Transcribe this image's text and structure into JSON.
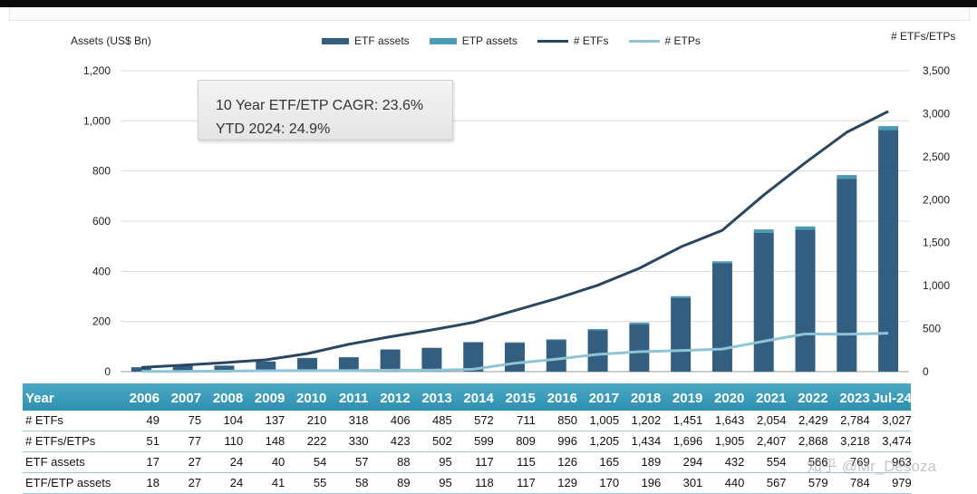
{
  "colors": {
    "etf_assets": "#345e80",
    "etp_assets": "#4a9bb4",
    "num_etfs": "#2b4660",
    "num_etps": "#8fc4d6",
    "grid": "#d9d9d9",
    "table_header": "#3a9cbd"
  },
  "chart_data": {
    "type": "bar",
    "left_axis_title": "Assets (US$ Bn)",
    "right_axis_title": "# ETFs/ETPs",
    "left_ticks": [
      "1,200",
      "1,000",
      "800",
      "600",
      "400",
      "200",
      "0"
    ],
    "right_ticks": [
      "3,500",
      "3,000",
      "2,500",
      "2,000",
      "1,500",
      "1,000",
      "500",
      "0"
    ],
    "ylim_left": [
      0,
      1200
    ],
    "ylim_right": [
      0,
      3500
    ],
    "grid": true,
    "legend_position": "top",
    "categories": [
      "2006",
      "2007",
      "2008",
      "2009",
      "2010",
      "2011",
      "2012",
      "2013",
      "2014",
      "2015",
      "2016",
      "2017",
      "2018",
      "2019",
      "2020",
      "2021",
      "2022",
      "2023",
      "Jul-24"
    ],
    "series": [
      {
        "name": "ETF assets",
        "type": "bar",
        "axis": "left",
        "values": [
          17,
          27,
          24,
          40,
          54,
          57,
          88,
          95,
          117,
          115,
          126,
          165,
          189,
          294,
          432,
          554,
          566,
          769,
          963
        ]
      },
      {
        "name": "ETP assets",
        "type": "bar-stack-total",
        "axis": "left",
        "values": [
          18,
          27,
          24,
          41,
          55,
          58,
          89,
          95,
          118,
          117,
          129,
          170,
          196,
          301,
          440,
          567,
          579,
          784,
          979
        ]
      },
      {
        "name": "# ETFs",
        "type": "line",
        "axis": "right",
        "values": [
          49,
          75,
          104,
          137,
          210,
          318,
          406,
          485,
          572,
          711,
          850,
          1005,
          1202,
          1451,
          1643,
          2054,
          2429,
          2784,
          3027
        ]
      },
      {
        "name": "# ETPs",
        "type": "line",
        "axis": "right",
        "values": [
          2,
          2,
          6,
          11,
          12,
          12,
          17,
          17,
          27,
          98,
          146,
          200,
          232,
          245,
          262,
          353,
          439,
          434,
          447
        ]
      }
    ],
    "annotation": [
      "10 Year ETF/ETP CAGR: 23.6%",
      "YTD 2024: 24.9%"
    ]
  },
  "table": {
    "header_label": "Year",
    "columns": [
      "2006",
      "2007",
      "2008",
      "2009",
      "2010",
      "2011",
      "2012",
      "2013",
      "2014",
      "2015",
      "2016",
      "2017",
      "2018",
      "2019",
      "2020",
      "2021",
      "2022",
      "2023",
      "Jul-24"
    ],
    "rows": [
      {
        "label": "# ETFs",
        "cells": [
          "49",
          "75",
          "104",
          "137",
          "210",
          "318",
          "406",
          "485",
          "572",
          "711",
          "850",
          "1,005",
          "1,202",
          "1,451",
          "1,643",
          "2,054",
          "2,429",
          "2,784",
          "3,027"
        ]
      },
      {
        "label": "# ETFs/ETPs",
        "cells": [
          "51",
          "77",
          "110",
          "148",
          "222",
          "330",
          "423",
          "502",
          "599",
          "809",
          "996",
          "1,205",
          "1,434",
          "1,696",
          "1,905",
          "2,407",
          "2,868",
          "3,218",
          "3,474"
        ]
      },
      {
        "label": "ETF assets",
        "cells": [
          "17",
          "27",
          "24",
          "40",
          "54",
          "57",
          "88",
          "95",
          "117",
          "115",
          "126",
          "165",
          "189",
          "294",
          "432",
          "554",
          "566",
          "769",
          "963"
        ]
      },
      {
        "label": "ETF/ETP assets",
        "cells": [
          "18",
          "27",
          "24",
          "41",
          "55",
          "58",
          "89",
          "95",
          "118",
          "117",
          "129",
          "170",
          "196",
          "301",
          "440",
          "567",
          "579",
          "784",
          "979"
        ]
      }
    ]
  },
  "watermark": "知乎 @Mr_Desoza"
}
